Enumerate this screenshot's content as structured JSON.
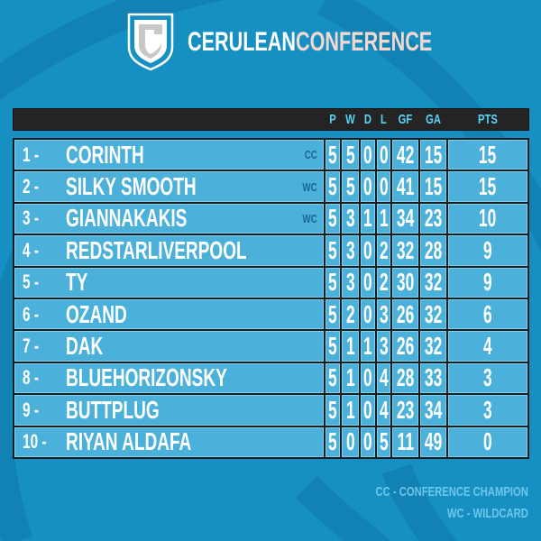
{
  "header": {
    "title_part1": "CERULEAN",
    "title_part2": "CONFERENCE"
  },
  "colors": {
    "background": "#1690c2",
    "cell": "#4bb1da",
    "header_bar": "#242424",
    "header_text": "#5ad4f7",
    "badge": "#1a6696",
    "title_accent": "#f3d8d0"
  },
  "columns": [
    "P",
    "W",
    "D",
    "L",
    "GF",
    "GA",
    "PTS"
  ],
  "rows": [
    {
      "rank": "1 -",
      "team": "CORINTH",
      "badge": "CC",
      "p": "5",
      "w": "5",
      "d": "0",
      "l": "0",
      "gf": "42",
      "ga": "15",
      "pts": "15"
    },
    {
      "rank": "2 -",
      "team": "SILKY SMOOTH",
      "badge": "WC",
      "p": "5",
      "w": "5",
      "d": "0",
      "l": "0",
      "gf": "41",
      "ga": "15",
      "pts": "15"
    },
    {
      "rank": "3 -",
      "team": "GIANNAKAKIS",
      "badge": "WC",
      "p": "5",
      "w": "3",
      "d": "1",
      "l": "1",
      "gf": "34",
      "ga": "23",
      "pts": "10"
    },
    {
      "rank": "4 -",
      "team": "REDSTARLIVERPOOL",
      "badge": "",
      "p": "5",
      "w": "3",
      "d": "0",
      "l": "2",
      "gf": "32",
      "ga": "28",
      "pts": "9"
    },
    {
      "rank": "5 -",
      "team": "TY",
      "badge": "",
      "p": "5",
      "w": "3",
      "d": "0",
      "l": "2",
      "gf": "30",
      "ga": "32",
      "pts": "9"
    },
    {
      "rank": "6 -",
      "team": "OZAND",
      "badge": "",
      "p": "5",
      "w": "2",
      "d": "0",
      "l": "3",
      "gf": "26",
      "ga": "32",
      "pts": "6"
    },
    {
      "rank": "7 -",
      "team": "DAK",
      "badge": "",
      "p": "5",
      "w": "1",
      "d": "1",
      "l": "3",
      "gf": "26",
      "ga": "32",
      "pts": "4"
    },
    {
      "rank": "8 -",
      "team": "BLUEHORIZONSKY",
      "badge": "",
      "p": "5",
      "w": "1",
      "d": "0",
      "l": "4",
      "gf": "28",
      "ga": "33",
      "pts": "3"
    },
    {
      "rank": "9 -",
      "team": "BUTTPLUG",
      "badge": "",
      "p": "5",
      "w": "1",
      "d": "0",
      "l": "4",
      "gf": "23",
      "ga": "34",
      "pts": "3"
    },
    {
      "rank": "10 -",
      "team": "RIYAN ALDAFA",
      "badge": "",
      "p": "5",
      "w": "0",
      "d": "0",
      "l": "5",
      "gf": "11",
      "ga": "49",
      "pts": "0"
    }
  ],
  "legend": [
    "CC - CONFERENCE CHAMPION",
    "WC - WILDCARD"
  ]
}
